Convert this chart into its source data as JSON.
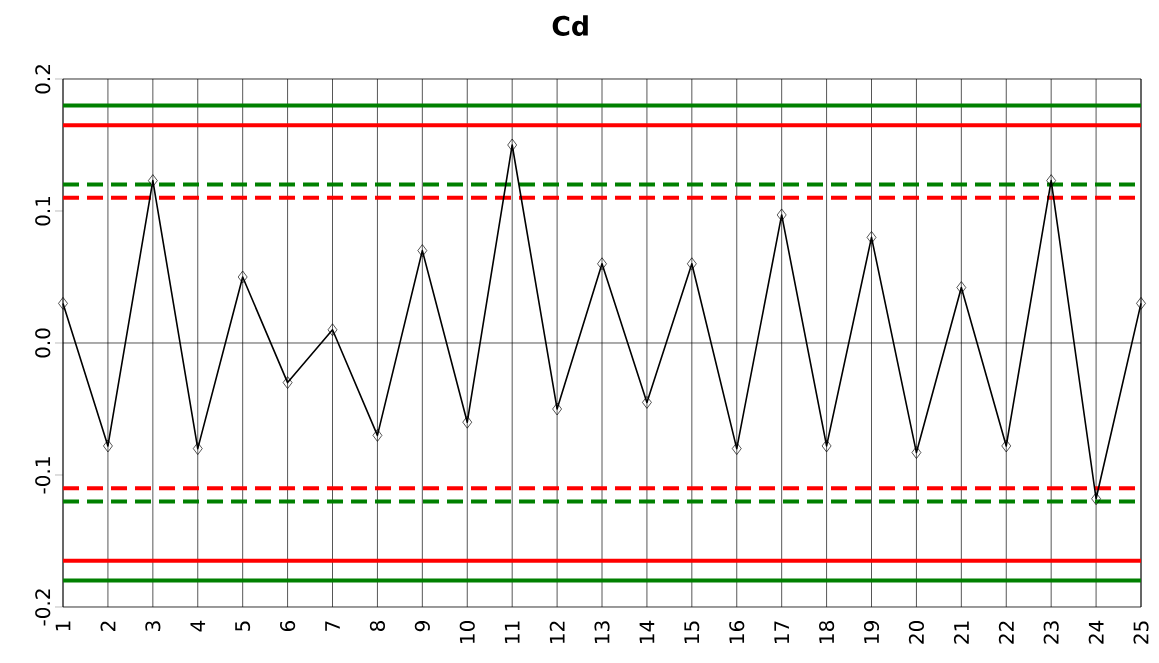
{
  "chart_data": {
    "type": "line",
    "title": "Cd",
    "x": [
      1,
      2,
      3,
      4,
      5,
      6,
      7,
      8,
      9,
      10,
      11,
      12,
      13,
      14,
      15,
      16,
      17,
      18,
      19,
      20,
      21,
      22,
      23,
      24,
      25
    ],
    "series": [
      {
        "color": "#000000",
        "values": [
          0.03,
          -0.078,
          0.123,
          -0.08,
          0.05,
          -0.03,
          0.01,
          -0.07,
          0.07,
          -0.06,
          0.15,
          -0.05,
          0.06,
          -0.045,
          0.06,
          -0.08,
          0.097,
          -0.078,
          0.08,
          -0.083,
          0.042,
          -0.078,
          0.123,
          -0.118,
          0.03
        ]
      }
    ],
    "xlim": [
      1,
      25
    ],
    "xticks": [
      1,
      2,
      3,
      4,
      5,
      6,
      7,
      8,
      9,
      10,
      11,
      12,
      13,
      14,
      15,
      16,
      17,
      18,
      19,
      20,
      21,
      22,
      23,
      24,
      25
    ],
    "ylim": [
      -0.2,
      0.2
    ],
    "yticks": [
      -0.2,
      -0.1,
      {
        "value": 0,
        "label": "0.0"
      },
      0.1,
      0.2
    ],
    "grid": "x",
    "marker": "diamond",
    "line_style": "solid",
    "ref_lines": [
      {
        "axis": "y",
        "value": 0,
        "color": "#000000",
        "line_style": "solid"
      },
      {
        "axis": "y",
        "value": 0.18,
        "color": "#008000",
        "line_style": "solid"
      },
      {
        "axis": "y",
        "value": 0.165,
        "color": "#ff0000",
        "line_style": "solid"
      },
      {
        "axis": "y",
        "value": 0.12,
        "color": "#008000",
        "line_style": "dashed"
      },
      {
        "axis": "y",
        "value": 0.11,
        "color": "#ff0000",
        "line_style": "dashed"
      },
      {
        "axis": "y",
        "value": -0.11,
        "color": "#ff0000",
        "line_style": "dashed"
      },
      {
        "axis": "y",
        "value": -0.12,
        "color": "#008000",
        "line_style": "dashed"
      },
      {
        "axis": "y",
        "value": -0.165,
        "color": "#ff0000",
        "line_style": "solid"
      },
      {
        "axis": "y",
        "value": -0.18,
        "color": "#008000",
        "line_style": "solid"
      }
    ]
  }
}
